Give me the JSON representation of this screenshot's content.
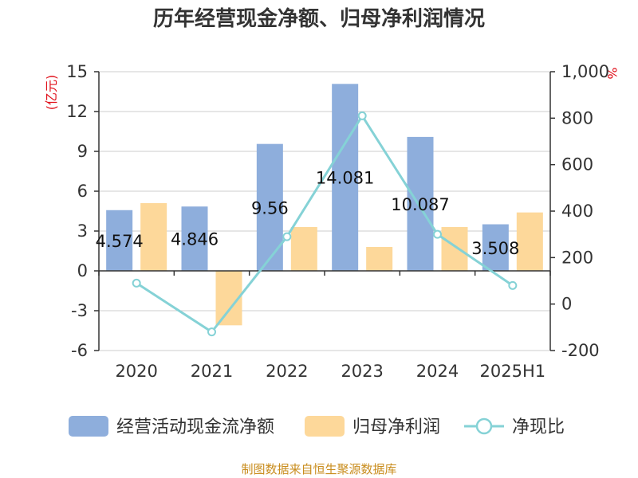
{
  "title": "历年经营现金净额、归母净利润情况",
  "source_note": "制图数据来自恒生聚源数据库",
  "chart_data": {
    "type": "bar",
    "categories": [
      "2020",
      "2021",
      "2022",
      "2023",
      "2024",
      "2025H1"
    ],
    "series": [
      {
        "name": "经营活动现金流净额",
        "type": "bar",
        "axis": "left",
        "color": "#8eaedc",
        "values": [
          4.574,
          4.846,
          9.56,
          14.081,
          10.087,
          3.508
        ]
      },
      {
        "name": "归母净利润",
        "type": "bar",
        "axis": "left",
        "color": "#fdd89a",
        "values": [
          5.1,
          -4.1,
          3.3,
          1.8,
          3.3,
          4.4
        ]
      },
      {
        "name": "净现比",
        "type": "line",
        "axis": "right",
        "color": "#85d2d6",
        "values": [
          90,
          -120,
          290,
          810,
          300,
          80
        ]
      }
    ],
    "data_labels": [
      "4.574",
      "4.846",
      "9.56",
      "14.081",
      "10.087",
      "3.508"
    ],
    "y_left": {
      "unit": "(亿元)",
      "min": -6,
      "max": 15,
      "ticks": [
        "15",
        "12",
        "9",
        "6",
        "3",
        "0",
        "-3",
        "-6"
      ]
    },
    "y_right": {
      "unit": "%",
      "min": -200,
      "max": 1000,
      "ticks": [
        "1,000",
        "800",
        "600",
        "400",
        "200",
        "0",
        "-200"
      ]
    },
    "grid": true,
    "legend_position": "bottom"
  }
}
